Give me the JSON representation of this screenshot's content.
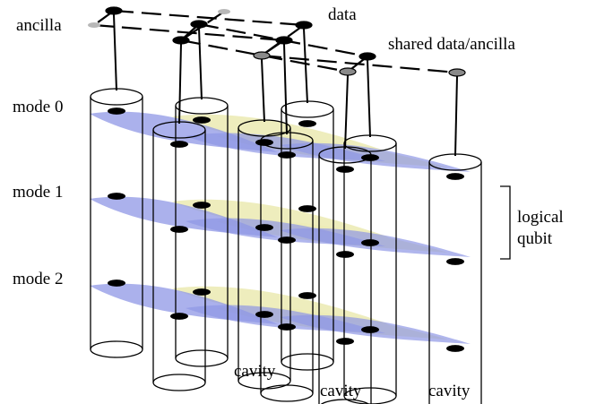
{
  "labels": {
    "ancilla": "ancilla",
    "data": "data",
    "shared": "shared data/ancilla",
    "modes": [
      "mode 0",
      "mode 1",
      "mode 2"
    ],
    "logical_line1": "logical",
    "logical_line2": "qubit",
    "cavity": "cavity"
  },
  "colors": {
    "stroke": "#000000",
    "blue_band": "#8f97e6",
    "yellow_band": "#ecebb6",
    "ancilla_dot": "#b8b8b8",
    "qubit_dot": "#8a8a8a",
    "background": "#ffffff"
  }
}
